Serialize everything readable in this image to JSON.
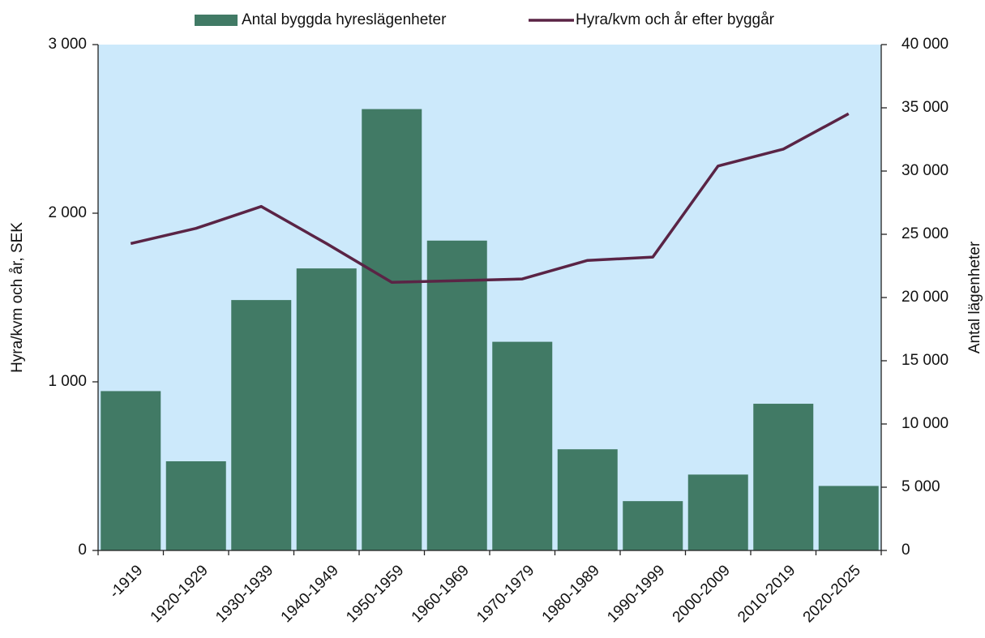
{
  "chart_data": {
    "type": "bar",
    "categories": [
      "-1919",
      "1920-1929",
      "1930-1939",
      "1940-1949",
      "1950-1959",
      "1960-1969",
      "1970-1979",
      "1980-1989",
      "1990-1999",
      "2000-2009",
      "2010-2019",
      "2020-2025"
    ],
    "series": [
      {
        "name": "Antal byggda hyreslägenheter",
        "type": "bar",
        "axis": "y2",
        "color": "#417a65",
        "values": [
          12600,
          7050,
          19800,
          22300,
          34900,
          24500,
          16500,
          8000,
          3900,
          6000,
          11600,
          5100
        ]
      },
      {
        "name": "Hyra/kvm och år efter byggår",
        "type": "line",
        "color": "#5a2445",
        "values": [
          1820,
          1910,
          2040,
          1820,
          1590,
          1600,
          1610,
          1720,
          1740,
          2280,
          2380,
          2590
        ]
      }
    ],
    "ylabel": "Hyra/kvm och år, SEK",
    "y2label": "Antal lägenheter",
    "ylim": [
      0,
      3000
    ],
    "yticks": [
      0,
      {
        "value": 1000,
        "label": "1 000"
      },
      {
        "value": 2000,
        "label": "2 000"
      },
      {
        "value": 3000,
        "label": "3 000"
      }
    ],
    "y2lim": [
      0,
      40000
    ],
    "y2ticks": [
      0,
      {
        "value": 5000,
        "label": "5 000"
      },
      {
        "value": 10000,
        "label": "10 000"
      },
      {
        "value": 15000,
        "label": "15 000"
      },
      {
        "value": 20000,
        "label": "20 000"
      },
      {
        "value": 25000,
        "label": "25 000"
      },
      {
        "value": 30000,
        "label": "30 000"
      },
      {
        "value": 35000,
        "label": "35 000"
      },
      {
        "value": 40000,
        "label": "40 000"
      }
    ],
    "background": "#cce9fb"
  }
}
